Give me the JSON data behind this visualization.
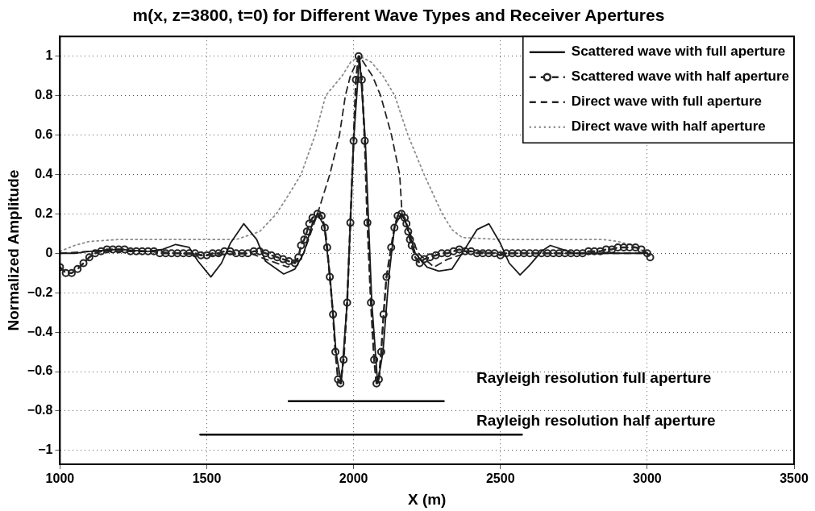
{
  "chart_data": {
    "type": "line",
    "title": "m(x, z=3800, t=0) for Different Wave Types and Receiver Apertures",
    "xlabel": "X (m)",
    "ylabel": "Normalized Amplitude",
    "xlim": [
      1000,
      3500
    ],
    "xticks": [
      1000,
      1500,
      2000,
      2500,
      3000,
      3500
    ],
    "ylim": [
      -1.07,
      1.1
    ],
    "yticks": [
      -1,
      -0.8,
      -0.6,
      -0.4,
      -0.2,
      0,
      0.2,
      0.4,
      0.6,
      0.8,
      1
    ],
    "grid": true,
    "legend": "top right",
    "annotations": [
      "Rayleigh resolution full aperture",
      "Rayleigh resolution half aperture"
    ],
    "series": [
      {
        "name": "Scattered wave with full aperture",
        "color": "#1a1a1a",
        "line_style": "solid",
        "marker": "none",
        "x": [
          1000,
          1050,
          1100,
          1200,
          1300,
          1350,
          1394,
          1440,
          1470,
          1514,
          1550,
          1580,
          1626,
          1670,
          1700,
          1762,
          1800,
          1830,
          1860,
          1877,
          1900,
          1920,
          1940,
          1958,
          1978,
          2000,
          2020,
          2040,
          2062,
          2082,
          2100,
          2120,
          2140,
          2163,
          2180,
          2210,
          2250,
          2290,
          2335,
          2370,
          2420,
          2461,
          2500,
          2530,
          2567,
          2600,
          2640,
          2670,
          2710,
          2750,
          2800,
          2900,
          3000
        ],
        "values": [
          0,
          0,
          0.01,
          0.02,
          0.01,
          0.02,
          0.045,
          0.03,
          -0.04,
          -0.12,
          -0.05,
          0.05,
          0.15,
          0.07,
          -0.04,
          -0.105,
          -0.08,
          0,
          0.15,
          0.2,
          0.14,
          -0.12,
          -0.5,
          -0.66,
          -0.25,
          0.57,
          1,
          0.57,
          -0.25,
          -0.66,
          -0.5,
          -0.12,
          0.14,
          0.2,
          0.15,
          0,
          -0.07,
          -0.09,
          -0.08,
          0,
          0.12,
          0.15,
          0.05,
          -0.05,
          -0.11,
          -0.06,
          0.01,
          0.04,
          0.02,
          0,
          0,
          0,
          0
        ]
      },
      {
        "name": "Scattered wave with half aperture",
        "color": "#262626",
        "line_style": "dashed",
        "marker": "circle",
        "x": [
          1000,
          1020,
          1040,
          1060,
          1080,
          1100,
          1120,
          1140,
          1160,
          1180,
          1200,
          1220,
          1240,
          1260,
          1280,
          1300,
          1320,
          1340,
          1360,
          1380,
          1400,
          1420,
          1440,
          1460,
          1480,
          1500,
          1520,
          1540,
          1560,
          1580,
          1600,
          1620,
          1640,
          1660,
          1680,
          1700,
          1720,
          1740,
          1760,
          1780,
          1800,
          1812,
          1821,
          1832,
          1841,
          1849,
          1860,
          1877,
          1891,
          1902,
          1910,
          1919,
          1930,
          1938,
          1947,
          1955,
          1966,
          1978,
          1989,
          2000,
          2008,
          2017,
          2028,
          2038,
          2047,
          2059,
          2070,
          2078,
          2086,
          2094,
          2102,
          2112,
          2128,
          2139,
          2150,
          2163,
          2174,
          2180,
          2186,
          2192,
          2198,
          2210,
          2225,
          2240,
          2260,
          2280,
          2300,
          2320,
          2340,
          2360,
          2380,
          2400,
          2420,
          2440,
          2460,
          2480,
          2500,
          2520,
          2540,
          2560,
          2580,
          2600,
          2620,
          2640,
          2660,
          2680,
          2700,
          2720,
          2740,
          2760,
          2780,
          2800,
          2820,
          2840,
          2860,
          2880,
          2900,
          2920,
          2940,
          2960,
          2980,
          3000,
          3010
        ],
        "values": [
          -0.07,
          -0.1,
          -0.1,
          -0.08,
          -0.05,
          -0.02,
          0,
          0.01,
          0.02,
          0.02,
          0.02,
          0.02,
          0.01,
          0.01,
          0.01,
          0.01,
          0.01,
          0,
          0,
          0,
          0,
          0,
          0,
          0,
          -0.01,
          -0.01,
          0,
          0,
          0.01,
          0.01,
          0,
          0,
          0,
          0.01,
          0.01,
          0,
          -0.01,
          -0.02,
          -0.03,
          -0.04,
          -0.05,
          -0.02,
          0.04,
          0.07,
          0.11,
          0.15,
          0.18,
          0.2,
          0.19,
          0.13,
          0.03,
          -0.12,
          -0.31,
          -0.5,
          -0.64,
          -0.66,
          -0.54,
          -0.25,
          0.155,
          0.57,
          0.88,
          1,
          0.88,
          0.57,
          0.155,
          -0.25,
          -0.54,
          -0.66,
          -0.64,
          -0.5,
          -0.31,
          -0.12,
          0.03,
          0.13,
          0.19,
          0.2,
          0.18,
          0.15,
          0.11,
          0.07,
          0.04,
          -0.02,
          -0.05,
          -0.03,
          -0.02,
          -0.01,
          0,
          0,
          0.01,
          0.02,
          0.01,
          0.01,
          0,
          0,
          0,
          0,
          -0.01,
          0,
          0,
          0,
          0,
          0,
          0,
          0,
          0,
          0,
          0,
          0,
          0,
          0,
          0,
          0.01,
          0.01,
          0.01,
          0.02,
          0.02,
          0.03,
          0.03,
          0.03,
          0.03,
          0.02,
          0,
          -0.02
        ]
      },
      {
        "name": "Direct wave with full aperture",
        "color": "#262626",
        "line_style": "dashed",
        "marker": "none",
        "x": [
          1000,
          1100,
          1300,
          1500,
          1650,
          1700,
          1776,
          1830,
          1877,
          1919,
          1952,
          1972,
          1989,
          2020,
          2064,
          2092,
          2129,
          2157,
          2165,
          2220,
          2274,
          2320,
          2400,
          2500,
          2700,
          3000
        ],
        "values": [
          0,
          0.01,
          0.01,
          -0.01,
          0,
          -0.03,
          -0.07,
          0,
          0.2,
          0.4,
          0.6,
          0.8,
          0.9,
          1,
          0.9,
          0.8,
          0.6,
          0.4,
          0.2,
          0,
          -0.07,
          -0.03,
          0.01,
          0,
          0,
          0
        ]
      },
      {
        "name": "Direct wave with half aperture",
        "color": "#8c8c8c",
        "line_style": "dotted",
        "marker": "none",
        "x": [
          1000,
          1050,
          1100,
          1200,
          1400,
          1600,
          1680,
          1737,
          1780,
          1821,
          1869,
          1905,
          1961,
          1990,
          2020,
          2060,
          2100,
          2140,
          2185,
          2240,
          2302,
          2335,
          2370,
          2500,
          2700,
          2850,
          2900,
          2950,
          3000
        ],
        "values": [
          0.01,
          0.04,
          0.06,
          0.07,
          0.07,
          0.07,
          0.11,
          0.2,
          0.3,
          0.4,
          0.6,
          0.8,
          0.9,
          0.97,
          1,
          0.97,
          0.9,
          0.8,
          0.6,
          0.4,
          0.2,
          0.12,
          0.08,
          0.07,
          0.07,
          0.07,
          0.06,
          0.04,
          0
        ]
      },
      {
        "color": "#000000",
        "line_style": "solid",
        "marker": "none",
        "x": [
          1779,
          2307
        ],
        "values": [
          -0.75,
          -0.75
        ]
      },
      {
        "color": "#000000",
        "line_style": "solid",
        "marker": "none",
        "x": [
          1478,
          2573
        ],
        "values": [
          -0.92,
          -0.92
        ]
      }
    ]
  }
}
